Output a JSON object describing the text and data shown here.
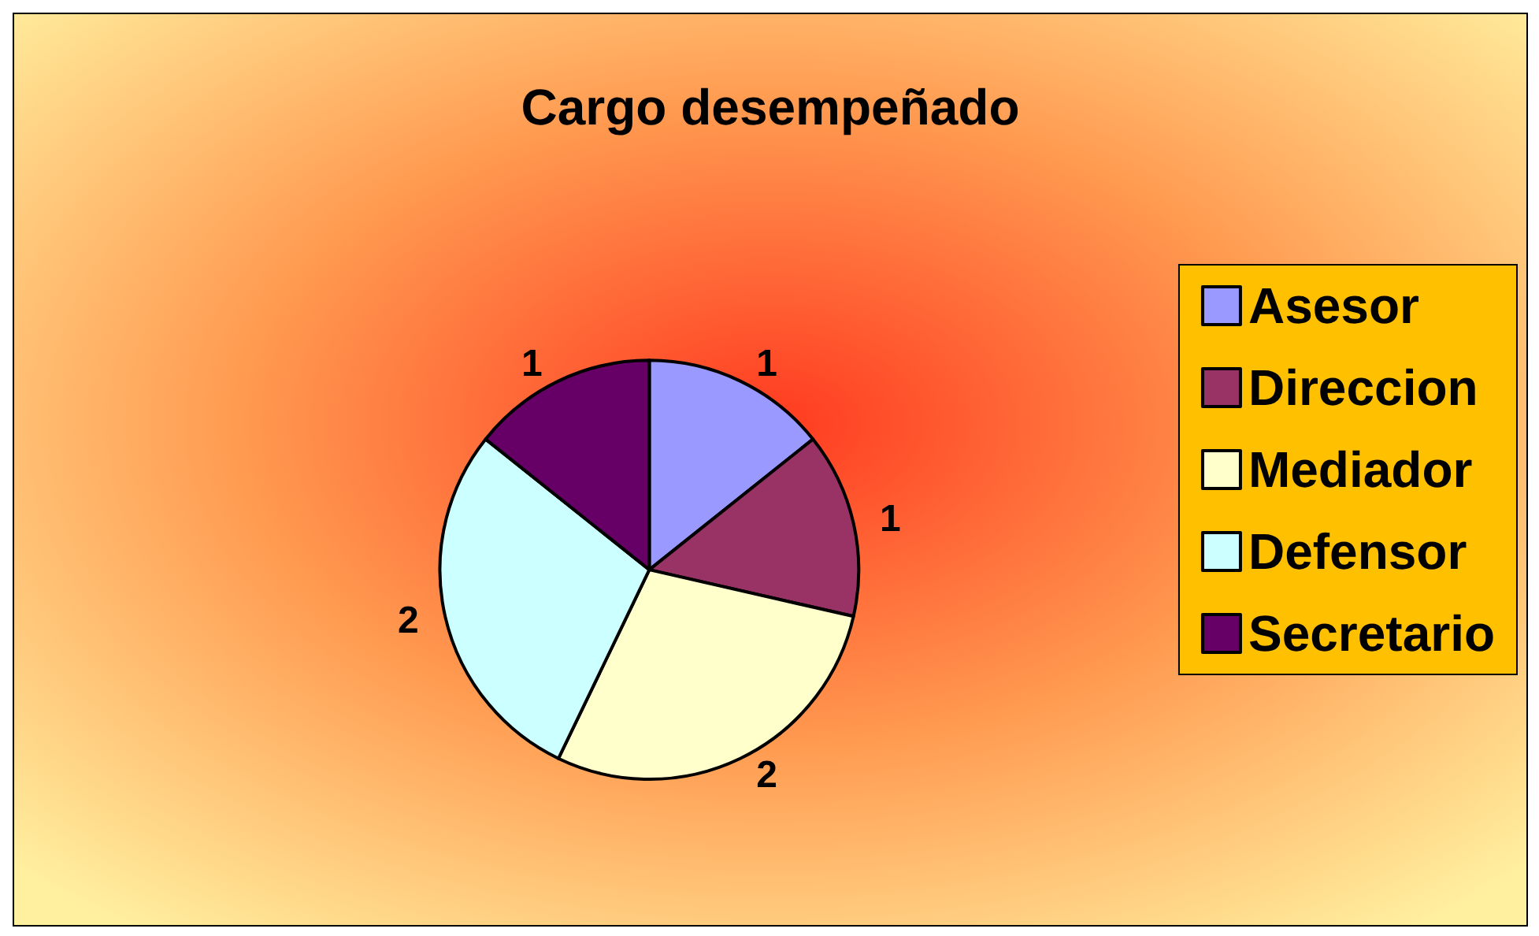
{
  "chart_data": {
    "type": "pie",
    "title": "Cargo desempeñado",
    "categories": [
      "Asesor",
      "Direccion",
      "Mediador",
      "Defensor",
      "Secretario"
    ],
    "values": [
      1,
      1,
      2,
      2,
      1
    ],
    "colors": [
      "#9999ff",
      "#993366",
      "#ffffcc",
      "#ccffff",
      "#660066"
    ],
    "data_labels": true,
    "legend": "right"
  }
}
